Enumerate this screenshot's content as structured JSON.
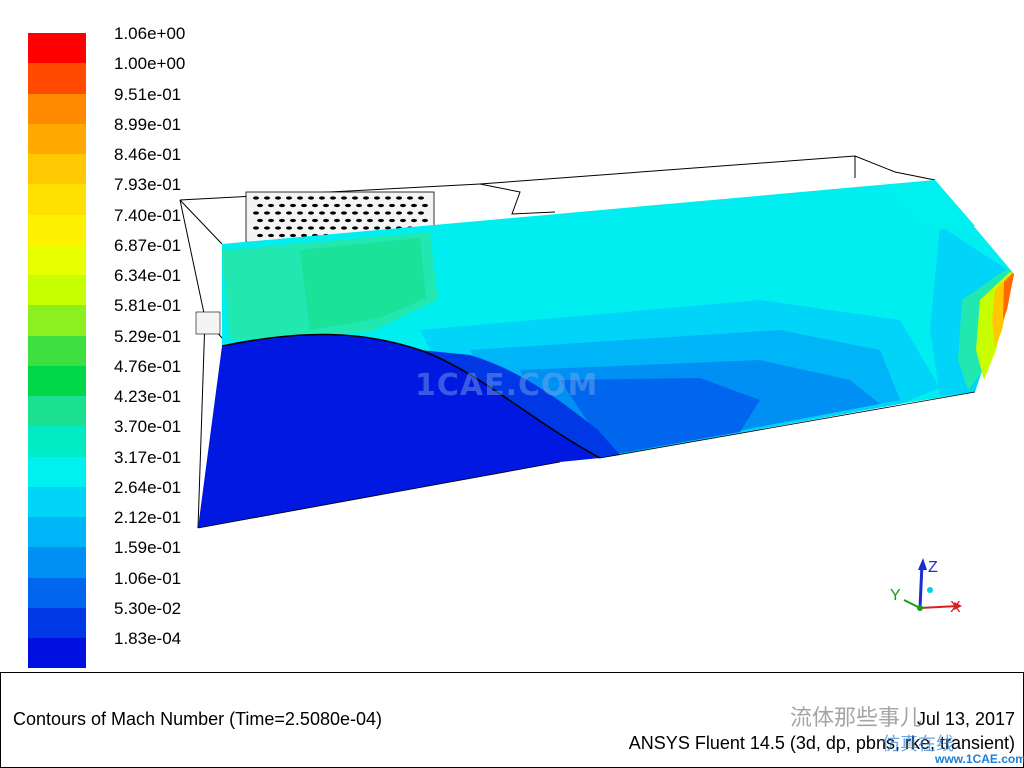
{
  "colorbar": {
    "labels": [
      "1.06e+00",
      "1.00e+00",
      "9.51e-01",
      "8.99e-01",
      "8.46e-01",
      "7.93e-01",
      "7.40e-01",
      "6.87e-01",
      "6.34e-01",
      "5.81e-01",
      "5.29e-01",
      "4.76e-01",
      "4.23e-01",
      "3.70e-01",
      "3.17e-01",
      "2.64e-01",
      "2.12e-01",
      "1.59e-01",
      "1.06e-01",
      "5.30e-02",
      "1.83e-04"
    ],
    "colors": [
      "#ff0000",
      "#ff4a00",
      "#ff8a00",
      "#ffa800",
      "#ffc800",
      "#ffe000",
      "#fff200",
      "#e8ff00",
      "#c8ff00",
      "#8cf020",
      "#3ee040",
      "#00d84a",
      "#1ae090",
      "#00eac4",
      "#00f0f0",
      "#00d4f8",
      "#00b4f8",
      "#0090f4",
      "#0066ee",
      "#0038e6",
      "#0010e0"
    ]
  },
  "axes": {
    "z": "Z",
    "y": "Y",
    "x": "X"
  },
  "footer": {
    "title": "Contours of Mach Number  (Time=2.5080e-04)",
    "date": "Jul 13, 2017",
    "solver": "ANSYS Fluent 14.5 (3d, dp, pbns, rke, transient)"
  },
  "watermark": {
    "center": "1CAE.COM",
    "corner": "流体那些事儿",
    "corner2": "仿真在线",
    "site": "www.1CAE.com"
  }
}
